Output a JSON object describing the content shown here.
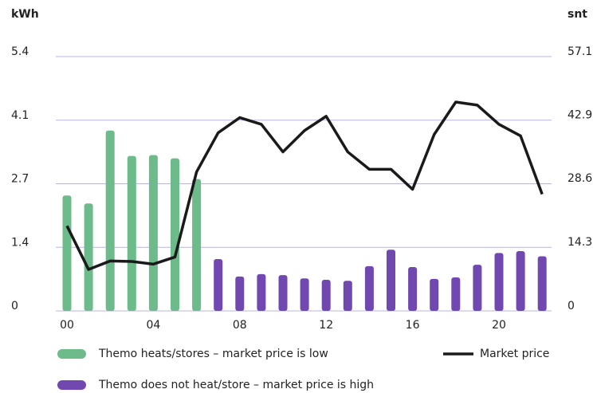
{
  "chart_data": {
    "type": "bar",
    "y_label": "kWh",
    "y2_label": "snt",
    "categories": [
      "00",
      null,
      null,
      null,
      "04",
      null,
      null,
      null,
      "08",
      null,
      null,
      null,
      "12",
      null,
      null,
      null,
      "16",
      null,
      null,
      null,
      "20",
      null,
      null
    ],
    "ylim": [
      0,
      5.4
    ],
    "yticks": [
      0,
      {
        "value": 1.35,
        "label": "1.4"
      },
      2.7,
      {
        "value": 4.05,
        "label": "4.1"
      },
      5.4
    ],
    "y2lim": [
      0,
      57.1
    ],
    "y2ticks": [
      0,
      14.3,
      28.6,
      42.9,
      57.1
    ],
    "grid": true,
    "series": [
      {
        "name": "Themo heats/stores – market price is low",
        "color": "#6dbb8a",
        "values": [
          2.45,
          2.28,
          3.83,
          3.29,
          3.31,
          3.24,
          2.8,
          null,
          null,
          null,
          null,
          null,
          null,
          null,
          null,
          null,
          null,
          null,
          null,
          null,
          null,
          null,
          null
        ]
      },
      {
        "name": "Themo does not heat/store – market price is high",
        "color": "#7048b0",
        "values": [
          null,
          null,
          null,
          null,
          null,
          null,
          null,
          1.1,
          0.73,
          0.78,
          0.76,
          0.69,
          0.66,
          0.64,
          0.95,
          1.3,
          0.93,
          0.68,
          0.71,
          0.98,
          1.23,
          1.27,
          1.16
        ]
      },
      {
        "name": "Market price",
        "color": "#1a1a1a",
        "type": "line",
        "axis": "y2",
        "values": [
          19.1,
          9.3,
          11.2,
          11.1,
          10.5,
          12.1,
          31.2,
          40.0,
          43.4,
          41.9,
          35.7,
          40.5,
          43.7,
          35.7,
          31.8,
          31.8,
          27.3,
          39.6,
          46.9,
          46.2,
          41.9,
          39.3,
          26.2
        ]
      }
    ]
  }
}
